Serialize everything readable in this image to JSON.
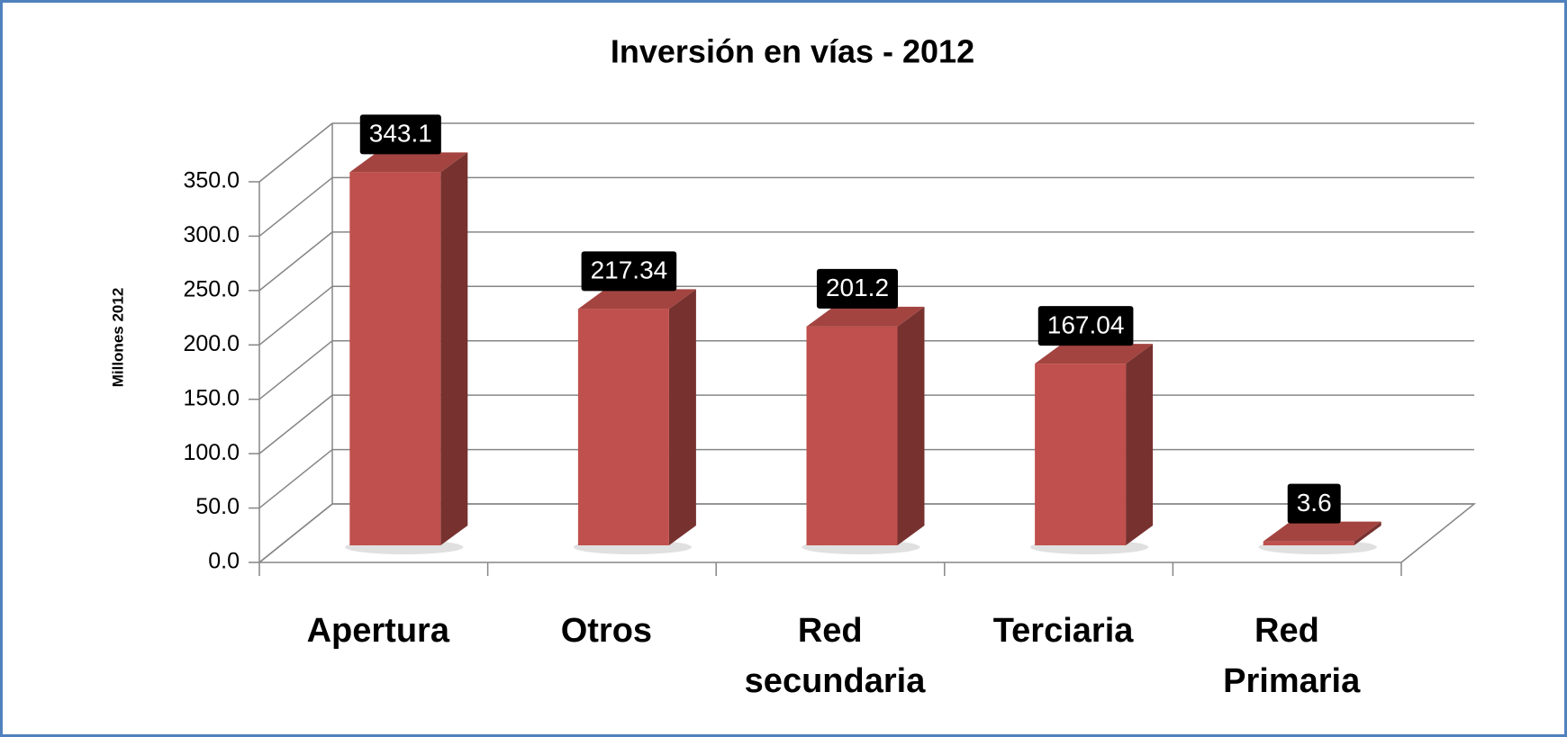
{
  "chart_data": {
    "type": "bar3d",
    "title": "Inversión en vías - 2012",
    "y_label": "Millones 2012",
    "categories": [
      "Apertura",
      "Otros",
      "Red secundaria",
      "Terciaria",
      "Red Primaria"
    ],
    "values": [
      343.1,
      217.34,
      201.2,
      167.04,
      3.6
    ],
    "color": "#c0504d",
    "ylim": [
      0,
      350
    ],
    "yticks": [
      {
        "value": 0,
        "label": "0.0"
      },
      {
        "value": 50,
        "label": "50.0"
      },
      {
        "value": 100,
        "label": "100.0"
      },
      {
        "value": 150,
        "label": "150.0"
      },
      {
        "value": 200,
        "label": "200.0"
      },
      {
        "value": 250,
        "label": "250.0"
      },
      {
        "value": 300,
        "label": "300.0"
      },
      {
        "value": 350,
        "label": "350.0"
      }
    ],
    "grid": true
  }
}
